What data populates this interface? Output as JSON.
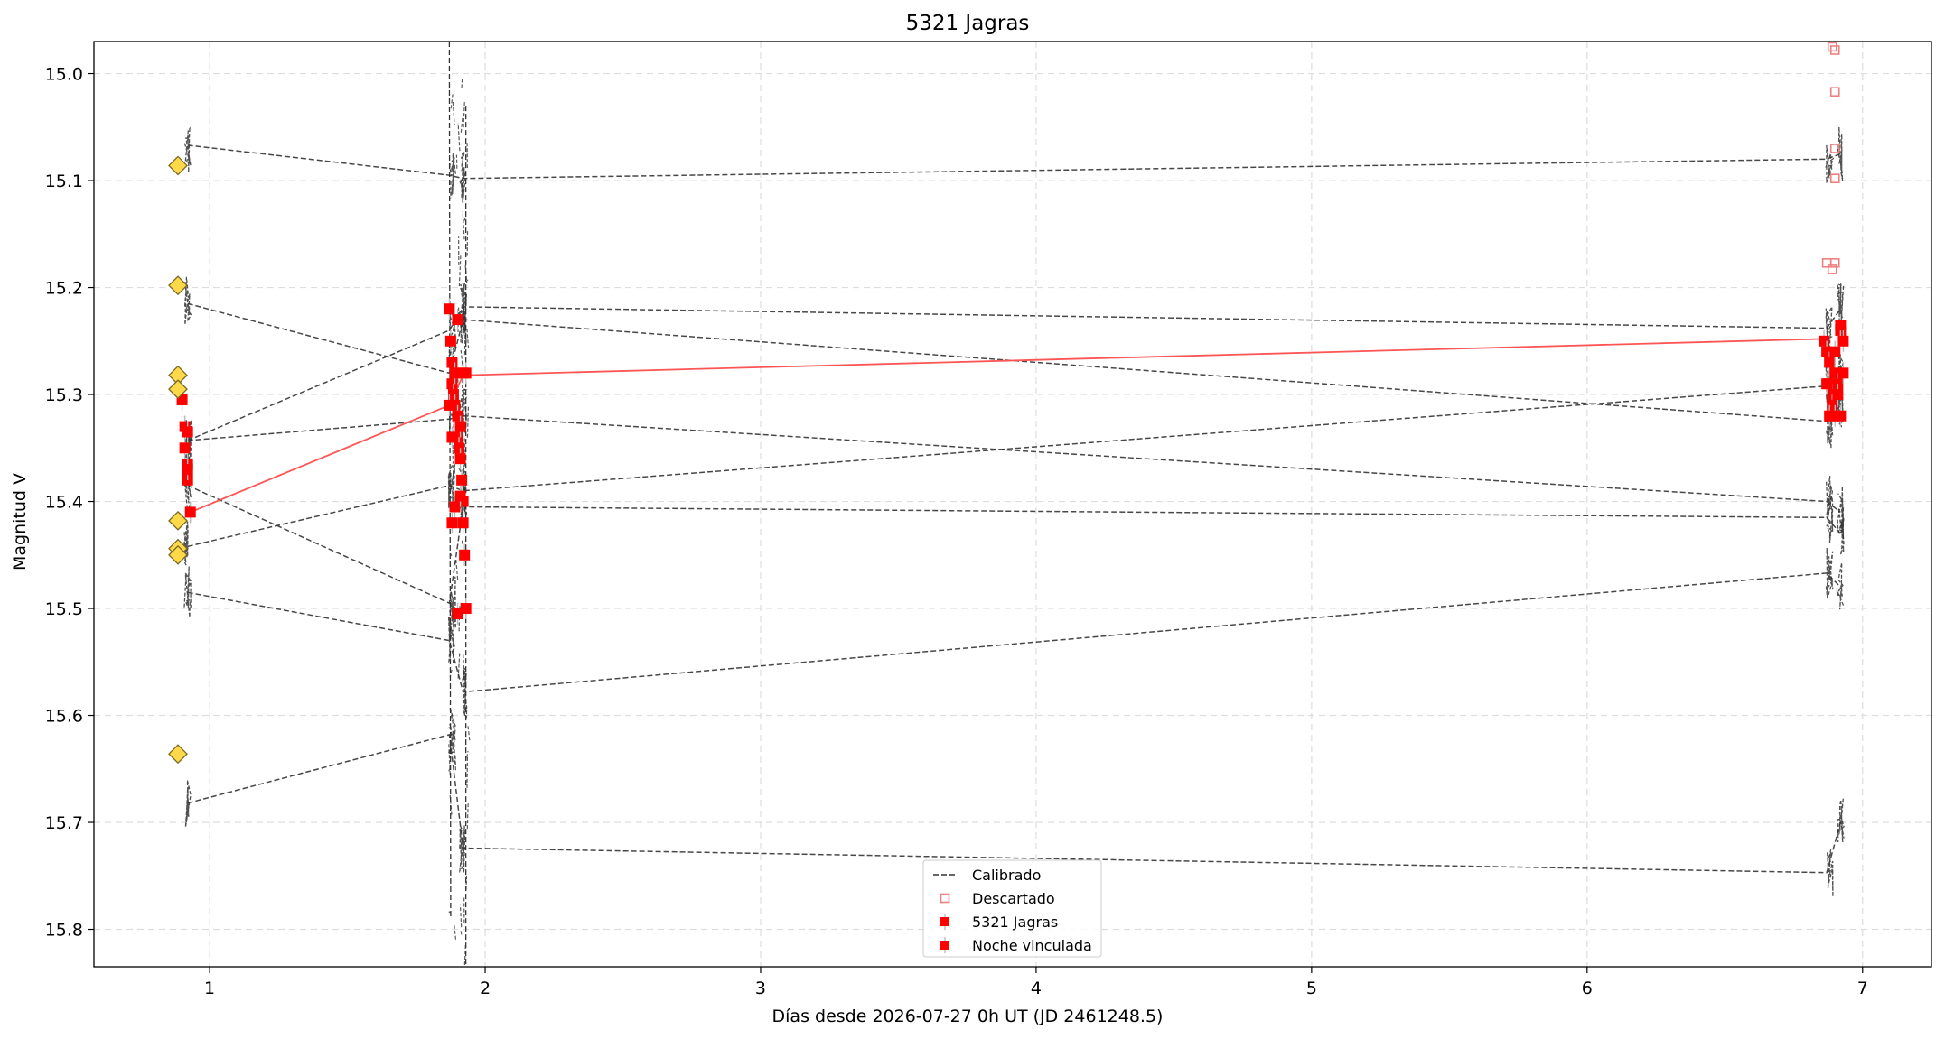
{
  "chart_data": {
    "type": "scatter",
    "title": "5321 Jagras",
    "xlabel": "Días desde 2026-07-27 0h UT (JD 2461248.5)",
    "ylabel": "Magnitud V",
    "xlim": [
      0.58,
      7.25
    ],
    "ylim": [
      15.835,
      14.97
    ],
    "y_inverted": true,
    "grid": true,
    "legend_position": "lower-center",
    "x_ticks": [
      1,
      2,
      3,
      4,
      5,
      6,
      7
    ],
    "y_ticks": [
      15.0,
      15.1,
      15.2,
      15.3,
      15.4,
      15.5,
      15.6,
      15.7,
      15.8
    ],
    "x_tick_labels": [
      "1",
      "2",
      "3",
      "4",
      "5",
      "6",
      "7"
    ],
    "y_tick_labels": [
      "15.0",
      "15.1",
      "15.2",
      "15.3",
      "15.4",
      "15.5",
      "15.6",
      "15.7",
      "15.8"
    ],
    "colors": {
      "calibrated": "#333333",
      "discarded": "#f08080",
      "target": "#ff0000",
      "target_line": "#ff5555",
      "comparison": "#ffd94a"
    },
    "legend": [
      {
        "label": "Calibrado",
        "kind": "dashed-line"
      },
      {
        "label": "Descartado",
        "kind": "open-square"
      },
      {
        "label": "5321 Jagras",
        "kind": "filled-square"
      },
      {
        "label": "Noche vinculada",
        "kind": "filled-square"
      }
    ],
    "calibrated_series": [
      {
        "x": [
          0.92,
          1.87,
          1.92,
          6.87,
          6.92
        ],
        "y": [
          15.067,
          15.095,
          15.098,
          15.08,
          15.075
        ]
      },
      {
        "x": [
          0.92,
          1.87,
          1.92,
          6.87,
          6.92
        ],
        "y": [
          15.215,
          15.28,
          15.23,
          15.325,
          15.31
        ]
      },
      {
        "x": [
          0.92,
          1.87,
          1.92,
          6.87,
          6.92
        ],
        "y": [
          15.343,
          15.24,
          15.218,
          15.238,
          15.22
        ]
      },
      {
        "x": [
          0.92,
          1.87,
          1.92,
          6.87,
          6.92
        ],
        "y": [
          15.343,
          15.323,
          15.32,
          15.4,
          15.41
        ]
      },
      {
        "x": [
          0.92,
          1.87,
          1.92,
          6.87,
          6.92
        ],
        "y": [
          15.385,
          15.495,
          15.405,
          15.415,
          15.43
        ]
      },
      {
        "x": [
          0.92,
          1.87,
          1.92,
          6.87,
          6.92
        ],
        "y": [
          15.442,
          15.385,
          15.39,
          15.292,
          15.285
        ]
      },
      {
        "x": [
          0.92,
          1.87,
          1.92,
          6.87,
          6.92
        ],
        "y": [
          15.485,
          15.53,
          15.578,
          15.467,
          15.48
        ]
      },
      {
        "x": [
          0.92,
          1.87,
          1.92,
          6.87,
          6.92
        ],
        "y": [
          15.682,
          15.618,
          15.724,
          15.747,
          15.7
        ]
      }
    ],
    "target_night1": {
      "x": [
        0.9,
        0.91,
        0.91,
        0.92,
        0.92,
        0.92,
        0.93,
        0.92
      ],
      "y": [
        15.305,
        15.33,
        15.35,
        15.365,
        15.38,
        15.37,
        15.41,
        15.335
      ]
    },
    "target_night2": {
      "x": [
        1.87,
        1.875,
        1.88,
        1.88,
        1.885,
        1.89,
        1.89,
        1.9,
        1.9,
        1.905,
        1.91,
        1.91,
        1.915,
        1.92,
        1.92,
        1.925,
        1.93,
        1.93,
        1.87,
        1.88,
        1.9,
        1.92,
        1.89,
        1.91,
        1.88,
        1.9
      ],
      "y": [
        15.22,
        15.25,
        15.27,
        15.29,
        15.3,
        15.28,
        15.31,
        15.32,
        15.34,
        15.35,
        15.36,
        15.33,
        15.38,
        15.4,
        15.42,
        15.45,
        15.5,
        15.28,
        15.31,
        15.34,
        15.23,
        15.28,
        15.405,
        15.395,
        15.42,
        15.505
      ]
    },
    "target_night3": {
      "x": [
        6.86,
        6.87,
        6.88,
        6.88,
        6.89,
        6.89,
        6.9,
        6.9,
        6.91,
        6.91,
        6.92,
        6.92,
        6.93,
        6.93,
        6.87,
        6.9,
        6.92,
        6.88
      ],
      "y": [
        15.25,
        15.26,
        15.27,
        15.29,
        15.3,
        15.31,
        15.32,
        15.28,
        15.29,
        15.3,
        15.32,
        15.24,
        15.25,
        15.28,
        15.29,
        15.26,
        15.235,
        15.32
      ]
    },
    "target_link": {
      "x": [
        0.93,
        1.87,
        1.92,
        6.86
      ],
      "y": [
        15.41,
        15.31,
        15.282,
        15.248
      ]
    },
    "discarded": {
      "x": [
        6.89,
        6.9,
        6.9,
        6.9,
        6.9,
        6.87,
        6.89,
        6.9
      ],
      "y": [
        14.975,
        14.978,
        15.017,
        15.07,
        15.098,
        15.177,
        15.183,
        15.177
      ]
    },
    "comparison": {
      "x": [
        0.885,
        0.885,
        0.885,
        0.885,
        0.885,
        0.885,
        0.885,
        0.885
      ],
      "y": [
        15.086,
        15.198,
        15.282,
        15.295,
        15.418,
        15.444,
        15.45,
        15.636
      ]
    }
  }
}
